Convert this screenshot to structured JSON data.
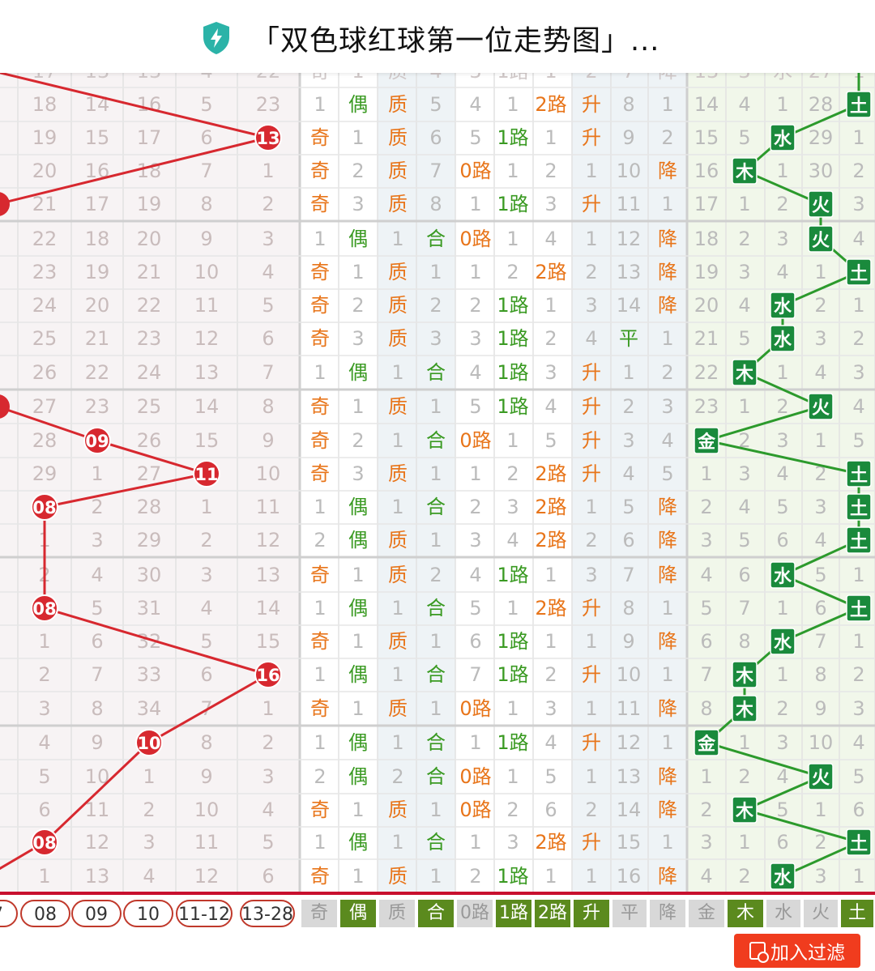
{
  "header": {
    "title": "「双色球红球第一位走势图」...",
    "icon": "shield-bolt-icon",
    "icon_color": "#2bb3a8"
  },
  "colors": {
    "red": "#d7282f",
    "orange": "#e8751a",
    "green": "#3a9a22",
    "dark_green": "#1a7e3c",
    "gray": "#bdbdbd"
  },
  "partial_top_row": [
    "17",
    "13",
    "13",
    "4",
    "22",
    "奇",
    "1",
    "质",
    "4",
    "3",
    "1路",
    "1",
    "2",
    "7",
    "降",
    "13",
    "3",
    "水",
    "27",
    "1"
  ],
  "rows": [
    {
      "left": [
        "18",
        "14",
        "16",
        "5",
        "23"
      ],
      "cells": [
        "1",
        "偶",
        "质",
        "5",
        "4",
        "1",
        "2路",
        "升",
        "8",
        "1",
        "14",
        "4",
        "1",
        "28",
        "土"
      ],
      "ball": null,
      "wx": 4
    },
    {
      "left": [
        "19",
        "15",
        "17",
        "6",
        "13"
      ],
      "cells": [
        "奇",
        "1",
        "质",
        "6",
        "5",
        "1路",
        "1",
        "升",
        "9",
        "2",
        "15",
        "5",
        "水",
        "29",
        "1"
      ],
      "ball": 4,
      "wx": 2
    },
    {
      "left": [
        "20",
        "16",
        "18",
        "7",
        "1"
      ],
      "cells": [
        "奇",
        "2",
        "质",
        "7",
        "0路",
        "1",
        "2",
        "1",
        "10",
        "降",
        "16",
        "木",
        "1",
        "30",
        "2"
      ],
      "ball": null,
      "wx": 1
    },
    {
      "left": [
        "21",
        "17",
        "19",
        "8",
        "2"
      ],
      "cells": [
        "奇",
        "3",
        "质",
        "8",
        "1",
        "1路",
        "3",
        "升",
        "11",
        "1",
        "17",
        "1",
        "2",
        "火",
        "3"
      ],
      "ball": -1,
      "wx": 3
    },
    {
      "left": [
        "22",
        "18",
        "20",
        "9",
        "3"
      ],
      "cells": [
        "1",
        "偶",
        "1",
        "合",
        "0路",
        "1",
        "4",
        "1",
        "12",
        "降",
        "18",
        "2",
        "3",
        "火",
        "4"
      ],
      "ball": null,
      "wx": 3
    },
    {
      "left": [
        "23",
        "19",
        "21",
        "10",
        "4"
      ],
      "cells": [
        "奇",
        "1",
        "质",
        "1",
        "1",
        "2",
        "2路",
        "2",
        "13",
        "降",
        "19",
        "3",
        "4",
        "1",
        "土"
      ],
      "ball": null,
      "wx": 4
    },
    {
      "left": [
        "24",
        "20",
        "22",
        "11",
        "5"
      ],
      "cells": [
        "奇",
        "2",
        "质",
        "2",
        "2",
        "1路",
        "1",
        "3",
        "14",
        "降",
        "20",
        "4",
        "水",
        "2",
        "1"
      ],
      "ball": null,
      "wx": 2
    },
    {
      "left": [
        "25",
        "21",
        "23",
        "12",
        "6"
      ],
      "cells": [
        "奇",
        "3",
        "质",
        "3",
        "3",
        "1路",
        "2",
        "4",
        "平",
        "1",
        "21",
        "5",
        "水",
        "3",
        "2"
      ],
      "ball": null,
      "wx": 2
    },
    {
      "left": [
        "26",
        "22",
        "24",
        "13",
        "7"
      ],
      "cells": [
        "1",
        "偶",
        "1",
        "合",
        "4",
        "1路",
        "3",
        "升",
        "1",
        "2",
        "22",
        "木",
        "1",
        "4",
        "3"
      ],
      "ball": null,
      "wx": 1
    },
    {
      "left": [
        "27",
        "23",
        "25",
        "14",
        "8"
      ],
      "cells": [
        "奇",
        "1",
        "质",
        "1",
        "5",
        "1路",
        "4",
        "升",
        "2",
        "3",
        "23",
        "1",
        "2",
        "火",
        "4"
      ],
      "ball": -1,
      "wx": 3
    },
    {
      "left": [
        "28",
        "09",
        "26",
        "15",
        "9"
      ],
      "cells": [
        "奇",
        "2",
        "1",
        "合",
        "0路",
        "1",
        "5",
        "升",
        "3",
        "4",
        "金",
        "2",
        "3",
        "1",
        "5"
      ],
      "ball": 1,
      "wx": 0
    },
    {
      "left": [
        "29",
        "1",
        "27",
        "11",
        "10"
      ],
      "cells": [
        "奇",
        "3",
        "质",
        "1",
        "1",
        "2",
        "2路",
        "升",
        "4",
        "5",
        "1",
        "3",
        "4",
        "2",
        "土"
      ],
      "ball": 3,
      "wx": 4
    },
    {
      "left": [
        "08",
        "2",
        "28",
        "1",
        "11"
      ],
      "cells": [
        "1",
        "偶",
        "1",
        "合",
        "2",
        "3",
        "2路",
        "1",
        "5",
        "降",
        "2",
        "4",
        "5",
        "3",
        "土"
      ],
      "ball": 0,
      "wx": 4
    },
    {
      "left": [
        "1",
        "3",
        "29",
        "2",
        "12"
      ],
      "cells": [
        "2",
        "偶",
        "质",
        "1",
        "3",
        "4",
        "2路",
        "2",
        "6",
        "降",
        "3",
        "5",
        "6",
        "4",
        "土"
      ],
      "ball": null,
      "wx": 4
    },
    {
      "left": [
        "2",
        "4",
        "30",
        "3",
        "13"
      ],
      "cells": [
        "奇",
        "1",
        "质",
        "2",
        "4",
        "1路",
        "1",
        "3",
        "7",
        "降",
        "4",
        "6",
        "水",
        "5",
        "1"
      ],
      "ball": null,
      "wx": 2
    },
    {
      "left": [
        "08",
        "5",
        "31",
        "4",
        "14"
      ],
      "cells": [
        "1",
        "偶",
        "1",
        "合",
        "5",
        "1",
        "2路",
        "升",
        "8",
        "1",
        "5",
        "7",
        "1",
        "6",
        "土"
      ],
      "ball": 0,
      "wx": 4
    },
    {
      "left": [
        "1",
        "6",
        "32",
        "5",
        "15"
      ],
      "cells": [
        "奇",
        "1",
        "质",
        "1",
        "6",
        "1路",
        "1",
        "1",
        "9",
        "降",
        "6",
        "8",
        "水",
        "7",
        "1"
      ],
      "ball": null,
      "wx": 2
    },
    {
      "left": [
        "2",
        "7",
        "33",
        "6",
        "16"
      ],
      "cells": [
        "1",
        "偶",
        "1",
        "合",
        "7",
        "1路",
        "2",
        "升",
        "10",
        "1",
        "7",
        "木",
        "1",
        "8",
        "2"
      ],
      "ball": 4,
      "wx": 1
    },
    {
      "left": [
        "3",
        "8",
        "34",
        "7",
        "1"
      ],
      "cells": [
        "奇",
        "1",
        "质",
        "1",
        "0路",
        "1",
        "3",
        "1",
        "11",
        "降",
        "8",
        "木",
        "2",
        "9",
        "3"
      ],
      "ball": null,
      "wx": 1
    },
    {
      "left": [
        "4",
        "9",
        "10",
        "8",
        "2"
      ],
      "cells": [
        "1",
        "偶",
        "1",
        "合",
        "1",
        "1路",
        "4",
        "升",
        "12",
        "1",
        "金",
        "1",
        "3",
        "10",
        "4"
      ],
      "ball": 2,
      "wx": 0
    },
    {
      "left": [
        "5",
        "10",
        "1",
        "9",
        "3"
      ],
      "cells": [
        "2",
        "偶",
        "2",
        "合",
        "0路",
        "1",
        "5",
        "1",
        "13",
        "降",
        "1",
        "2",
        "4",
        "火",
        "5"
      ],
      "ball": null,
      "wx": 3
    },
    {
      "left": [
        "6",
        "11",
        "2",
        "10",
        "4"
      ],
      "cells": [
        "奇",
        "1",
        "质",
        "1",
        "0路",
        "2",
        "6",
        "2",
        "14",
        "降",
        "2",
        "木",
        "5",
        "1",
        "6"
      ],
      "ball": null,
      "wx": 1
    },
    {
      "left": [
        "08",
        "12",
        "3",
        "11",
        "5"
      ],
      "cells": [
        "1",
        "偶",
        "1",
        "合",
        "1",
        "3",
        "2路",
        "升",
        "15",
        "1",
        "3",
        "1",
        "6",
        "2",
        "土"
      ],
      "ball": 0,
      "wx": 4
    },
    {
      "left": [
        "1",
        "13",
        "4",
        "12",
        "6"
      ],
      "cells": [
        "奇",
        "1",
        "质",
        "1",
        "2",
        "1路",
        "1",
        "1",
        "16",
        "降",
        "4",
        "2",
        "水",
        "3",
        "1"
      ],
      "ball": null,
      "wx": 2
    }
  ],
  "footer": {
    "balls": [
      "7",
      "08",
      "09",
      "10",
      "11-12",
      "13-28"
    ],
    "tabs": [
      "奇",
      "偶",
      "质",
      "合",
      "0路",
      "1路",
      "2路",
      "升",
      "平",
      "降",
      "金",
      "木",
      "水",
      "火",
      "土"
    ]
  },
  "filter_button": "加入过滤"
}
